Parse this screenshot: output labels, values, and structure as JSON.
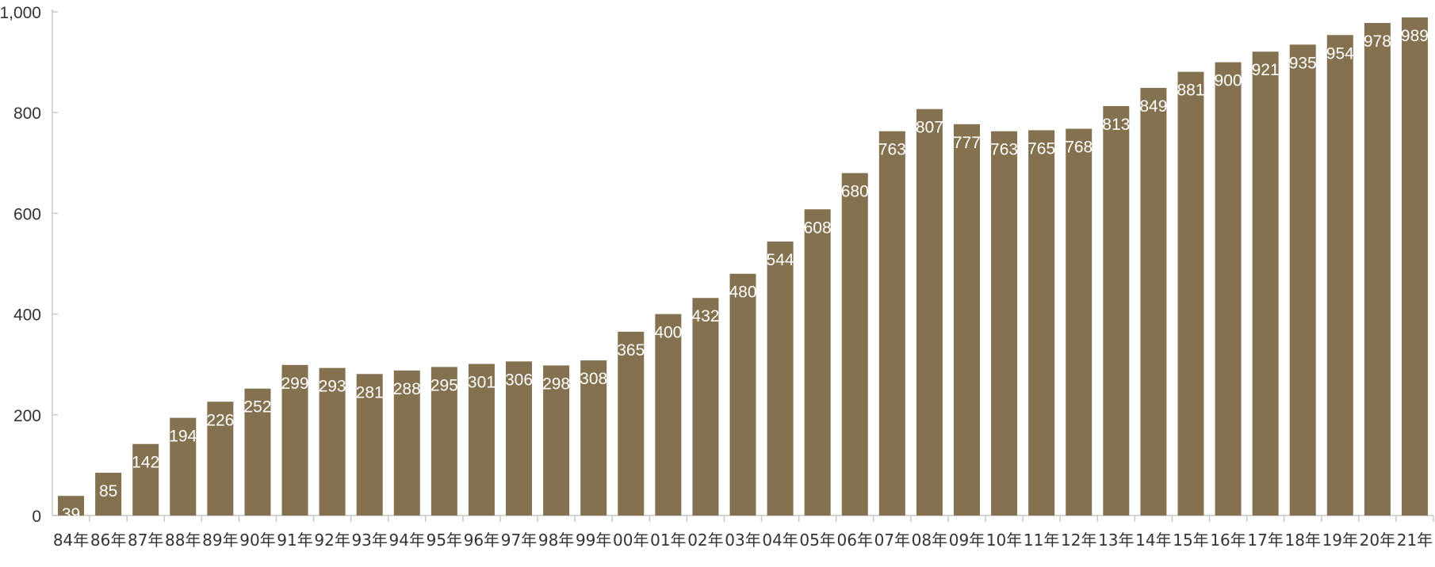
{
  "chart_data": {
    "type": "bar",
    "categories": [
      "84年",
      "86年",
      "87年",
      "88年",
      "89年",
      "90年",
      "91年",
      "92年",
      "93年",
      "94年",
      "95年",
      "96年",
      "97年",
      "98年",
      "99年",
      "00年",
      "01年",
      "02年",
      "03年",
      "04年",
      "05年",
      "06年",
      "07年",
      "08年",
      "09年",
      "10年",
      "11年",
      "12年",
      "13年",
      "14年",
      "15年",
      "16年",
      "17年",
      "18年",
      "19年",
      "20年",
      "21年"
    ],
    "values": [
      39,
      85,
      142,
      194,
      226,
      252,
      299,
      293,
      281,
      288,
      295,
      301,
      306,
      298,
      308,
      365,
      400,
      432,
      480,
      544,
      608,
      680,
      763,
      807,
      777,
      763,
      765,
      768,
      813,
      849,
      881,
      900,
      921,
      935,
      954,
      978,
      989
    ],
    "value_labels": [
      "39",
      "85",
      "142",
      "194",
      "226",
      "252",
      "299",
      "293",
      "281",
      "288",
      "295",
      "301",
      "306",
      "298",
      "308",
      "365",
      "400",
      "432",
      "480",
      "544",
      "608",
      "680",
      "763",
      "807",
      "777",
      "763",
      "765",
      "768",
      "813",
      "849",
      "881",
      "900",
      "921",
      "935",
      "954",
      "978",
      "989"
    ],
    "y_ticks": [
      0,
      200,
      400,
      600,
      800,
      1000
    ],
    "y_tick_labels": [
      "0",
      "200",
      "400",
      "600",
      "800",
      "1,000"
    ],
    "ylim": [
      0,
      1000
    ],
    "title": "",
    "xlabel": "",
    "ylabel": "",
    "grid": false,
    "bar_color": "#83714f",
    "axis_color": "#c8c8c8"
  }
}
